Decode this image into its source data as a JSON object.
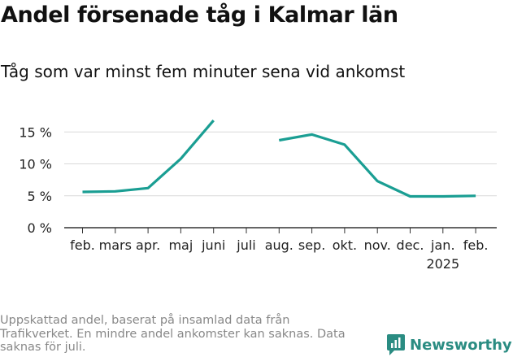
{
  "title": "Andel försenade tåg i Kalmar län",
  "subtitle": "Tåg som var minst fem minuter sena vid ankomst",
  "footnote": "Uppskattad andel, baserat på insamlad data från Trafikverket. En mindre andel ankomster kan saknas. Data saknas för juli.",
  "brand": {
    "name": "Newsworthy",
    "icon": "newsworthy-logo-icon"
  },
  "colors": {
    "line": "#1a9e93",
    "grid": "#d9d9d9",
    "axis": "#333333",
    "brand": "#2a8c82"
  },
  "chart_data": {
    "type": "line",
    "categories": [
      "feb.",
      "mars",
      "apr.",
      "maj",
      "juni",
      "juli",
      "aug.",
      "sep.",
      "okt.",
      "nov.",
      "dec.",
      "jan.",
      "feb."
    ],
    "year_labels": [
      "",
      "",
      "",
      "",
      "",
      "",
      "",
      "",
      "",
      "",
      "",
      "2025",
      ""
    ],
    "values": [
      5.6,
      5.7,
      6.2,
      10.8,
      16.8,
      null,
      13.7,
      14.6,
      13.0,
      7.3,
      4.9,
      4.9,
      5.0
    ],
    "yticks": [
      0,
      5,
      10,
      15
    ],
    "ytick_labels": [
      "0 %",
      "5 %",
      "10 %",
      "15 %"
    ],
    "ylim": [
      0,
      17
    ],
    "grid": true,
    "xlabel": "",
    "ylabel": ""
  }
}
